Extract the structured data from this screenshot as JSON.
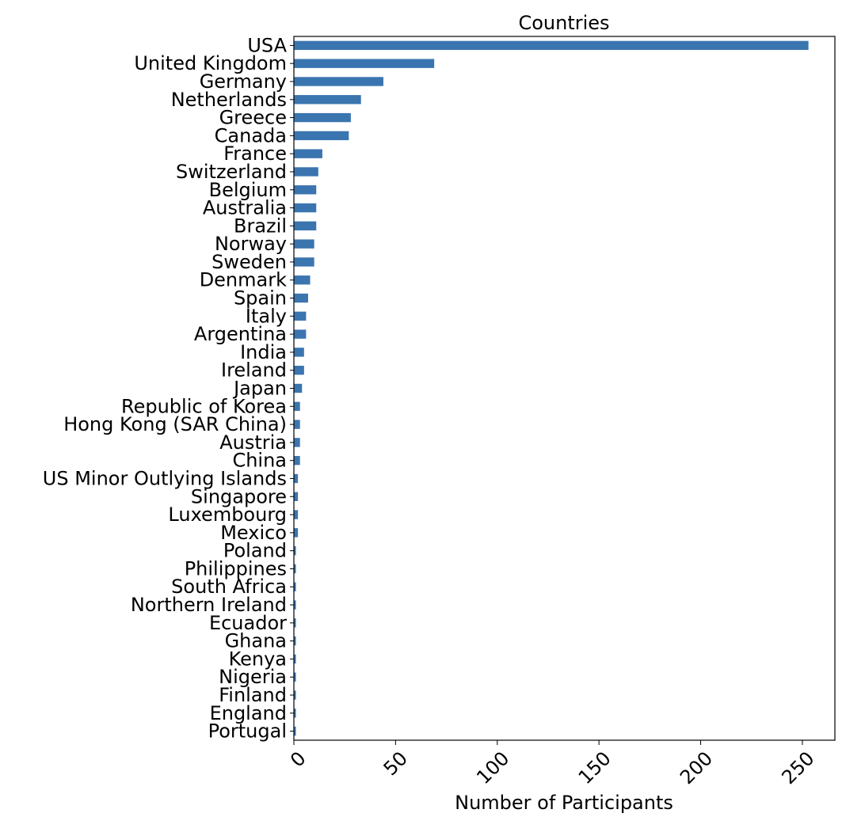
{
  "chart_data": {
    "type": "bar",
    "orientation": "horizontal",
    "title": "Countries",
    "xlabel": "Number of Participants",
    "ylabel": "",
    "xlim": [
      0,
      266
    ],
    "xticks": [
      0,
      50,
      100,
      150,
      200,
      250
    ],
    "grid": false,
    "legend": "none",
    "bar_color": "#3b75af",
    "categories": [
      "USA",
      "United Kingdom",
      "Germany",
      "Netherlands",
      "Greece",
      "Canada",
      "France",
      "Switzerland",
      "Belgium",
      "Australia",
      "Brazil",
      "Norway",
      "Sweden",
      "Denmark",
      "Spain",
      "Italy",
      "Argentina",
      "India",
      "Ireland",
      "Japan",
      "Republic of Korea",
      "Hong Kong (SAR China)",
      "Austria",
      "China",
      "US Minor Outlying Islands",
      "Singapore",
      "Luxembourg",
      "Mexico",
      "Poland",
      "Philippines",
      "South Africa",
      "Northern Ireland",
      "Ecuador",
      "Ghana",
      "Kenya",
      "Nigeria",
      "Finland",
      "England",
      "Portugal"
    ],
    "values": [
      253,
      69,
      44,
      33,
      28,
      27,
      14,
      12,
      11,
      11,
      11,
      10,
      10,
      8,
      7,
      6,
      6,
      5,
      5,
      4,
      3,
      3,
      3,
      3,
      2,
      2,
      2,
      2,
      1,
      1,
      1,
      1,
      1,
      1,
      1,
      1,
      1,
      1,
      1
    ]
  }
}
